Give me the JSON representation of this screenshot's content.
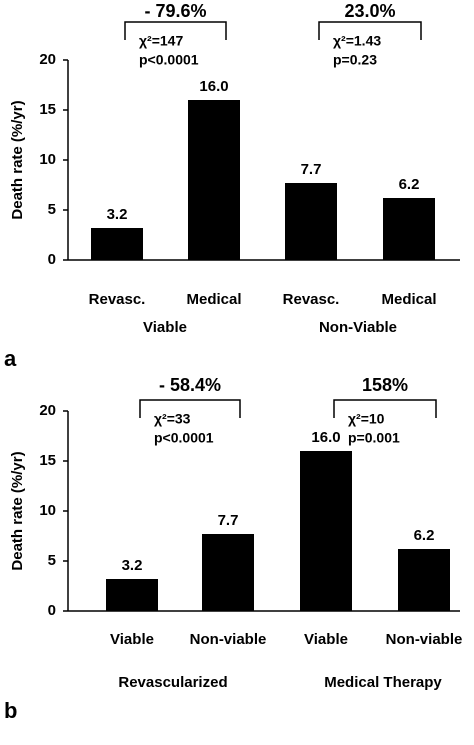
{
  "chart_data": [
    {
      "type": "bar",
      "panel_label": "a",
      "ylabel": "Death rate (%/yr)",
      "categories": [
        "Revasc.",
        "Medical",
        "Revasc.",
        "Medical"
      ],
      "group_labels": [
        "Viable",
        "Non-Viable"
      ],
      "values": [
        3.2,
        16.0,
        7.7,
        6.2
      ],
      "value_labels": [
        "3.2",
        "16.0",
        "7.7",
        "6.2"
      ],
      "color": "#000000",
      "ylim": [
        0,
        20
      ],
      "yticks": [
        0,
        5,
        10,
        15,
        20
      ],
      "annotations": [
        {
          "text": "- 79.6%",
          "stats": [
            "χ²=147",
            "p<0.0001"
          ]
        },
        {
          "text": "23.0%",
          "stats": [
            "χ²=1.43",
            "p=0.23"
          ]
        }
      ]
    },
    {
      "type": "bar",
      "panel_label": "b",
      "ylabel": "Death rate (%/yr)",
      "categories": [
        "Viable",
        "Non-viable",
        "Viable",
        "Non-viable"
      ],
      "group_labels": [
        "Revascularized",
        "Medical Therapy"
      ],
      "values": [
        3.2,
        7.7,
        16.0,
        6.2
      ],
      "value_labels": [
        "3.2",
        "7.7",
        "16.0",
        "6.2"
      ],
      "color": "#000000",
      "ylim": [
        0,
        20
      ],
      "yticks": [
        0,
        5,
        10,
        15,
        20
      ],
      "annotations": [
        {
          "text": "- 58.4%",
          "stats": [
            "χ²=33",
            "p<0.0001"
          ]
        },
        {
          "text": "158%",
          "stats": [
            "χ²=10",
            "p=0.001"
          ]
        }
      ]
    }
  ]
}
